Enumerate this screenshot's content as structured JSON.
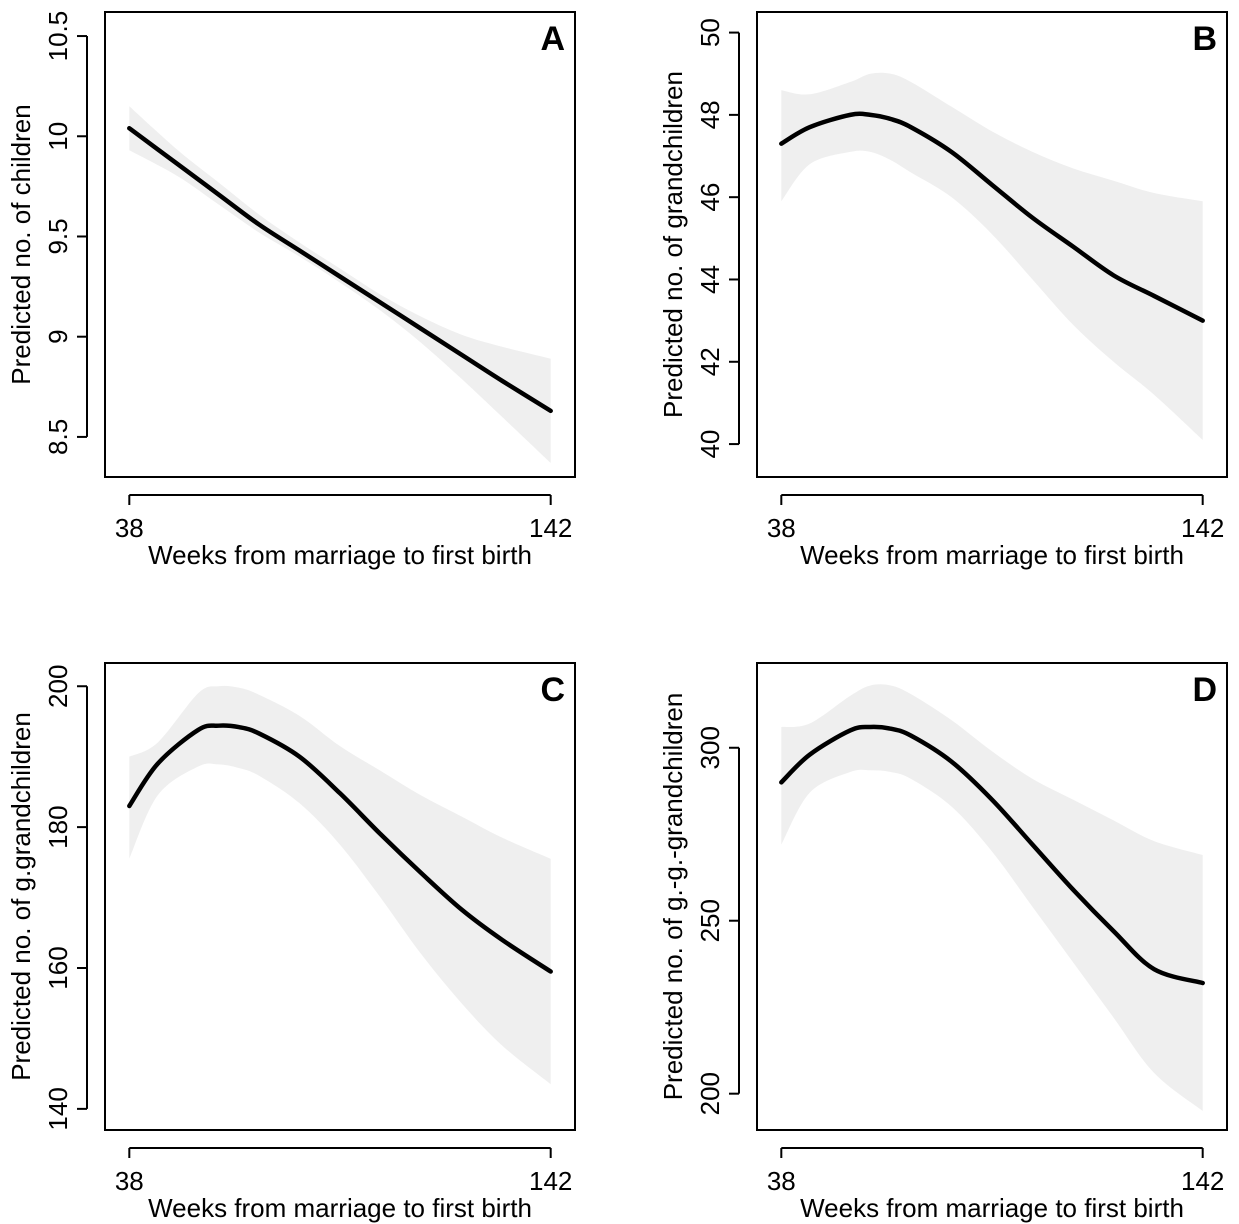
{
  "chart_data": [
    {
      "type": "line",
      "panel_label": "A",
      "xlabel": "Weeks from marriage to first birth",
      "ylabel": "Predicted no. of children",
      "xticks": [
        38,
        142
      ],
      "xlim": [
        32,
        148
      ],
      "yticks": [
        8.5,
        9,
        9.5,
        10,
        10.5
      ],
      "ytick_labels": [
        "8.5",
        "9",
        "9.5",
        "10",
        "10.5"
      ],
      "ylim": [
        8.3,
        10.62
      ],
      "x": [
        38,
        50,
        60,
        70,
        80,
        90,
        100,
        110,
        120,
        130,
        142
      ],
      "y": [
        10.04,
        9.86,
        9.71,
        9.56,
        9.43,
        9.3,
        9.17,
        9.04,
        8.91,
        8.78,
        8.63
      ],
      "lower": [
        9.93,
        9.8,
        9.66,
        9.52,
        9.4,
        9.27,
        9.13,
        8.97,
        8.79,
        8.6,
        8.37
      ],
      "upper": [
        10.15,
        9.93,
        9.77,
        9.61,
        9.47,
        9.34,
        9.21,
        9.1,
        9.01,
        8.95,
        8.89
      ]
    },
    {
      "type": "line",
      "panel_label": "B",
      "xlabel": "Weeks from marriage to first birth",
      "ylabel": "Predicted no. of grandchildren",
      "xticks": [
        38,
        142
      ],
      "xlim": [
        32,
        148
      ],
      "yticks": [
        40,
        42,
        44,
        46,
        48,
        50
      ],
      "ytick_labels": [
        "40",
        "42",
        "44",
        "46",
        "48",
        "50"
      ],
      "ylim": [
        39.2,
        50.5
      ],
      "x": [
        38,
        45,
        55,
        60,
        65,
        70,
        80,
        90,
        100,
        110,
        120,
        130,
        142
      ],
      "y": [
        47.3,
        47.7,
        48.0,
        48.0,
        47.9,
        47.7,
        47.1,
        46.3,
        45.5,
        44.8,
        44.1,
        43.6,
        43.0
      ],
      "lower": [
        45.9,
        46.8,
        47.1,
        47.1,
        46.9,
        46.6,
        46.0,
        45.1,
        44.0,
        42.9,
        42.0,
        41.2,
        40.1
      ],
      "upper": [
        48.6,
        48.5,
        48.8,
        49.0,
        49.0,
        48.8,
        48.2,
        47.6,
        47.1,
        46.7,
        46.4,
        46.1,
        45.9
      ]
    },
    {
      "type": "line",
      "panel_label": "C",
      "xlabel": "Weeks from marriage to first birth",
      "ylabel": "Predicted no. of g.grandchildren",
      "xticks": [
        38,
        142
      ],
      "xlim": [
        32,
        148
      ],
      "yticks": [
        140,
        160,
        180,
        200
      ],
      "ytick_labels": [
        "140",
        "160",
        "180",
        "200"
      ],
      "ylim": [
        137,
        203.3
      ],
      "x": [
        38,
        45,
        55,
        60,
        65,
        70,
        80,
        90,
        100,
        110,
        120,
        130,
        142
      ],
      "y": [
        183.0,
        189.0,
        193.8,
        194.4,
        194.2,
        193.3,
        190.0,
        184.8,
        179.0,
        173.5,
        168.3,
        164.0,
        159.5
      ],
      "lower": [
        175.5,
        184.5,
        188.6,
        188.9,
        188.4,
        187.3,
        183.4,
        177.5,
        170.0,
        162.0,
        155.0,
        149.0,
        143.5
      ],
      "upper": [
        190.0,
        192.0,
        199.0,
        200.0,
        199.8,
        198.8,
        195.8,
        191.5,
        188.0,
        184.5,
        181.5,
        178.5,
        175.5
      ]
    },
    {
      "type": "line",
      "panel_label": "D",
      "xlabel": "Weeks from marriage to first birth",
      "ylabel": "Predicted no. of g.-g.-grandchildren",
      "xticks": [
        38,
        142
      ],
      "xlim": [
        32,
        148
      ],
      "yticks": [
        200,
        250,
        300
      ],
      "ytick_labels": [
        "200",
        "250",
        "300"
      ],
      "ylim": [
        189.5,
        324.5
      ],
      "x": [
        38,
        45,
        55,
        60,
        65,
        70,
        80,
        90,
        100,
        110,
        120,
        130,
        142
      ],
      "y": [
        290,
        298,
        305,
        306,
        305.5,
        303.5,
        296,
        285,
        272,
        259,
        247,
        236,
        232
      ],
      "lower": [
        272,
        287,
        293,
        293.5,
        293,
        291,
        283,
        270,
        254,
        238,
        222,
        206,
        195
      ],
      "upper": [
        306,
        307,
        315,
        318,
        318,
        315.5,
        308,
        299,
        291,
        285,
        279,
        273,
        269
      ]
    }
  ]
}
